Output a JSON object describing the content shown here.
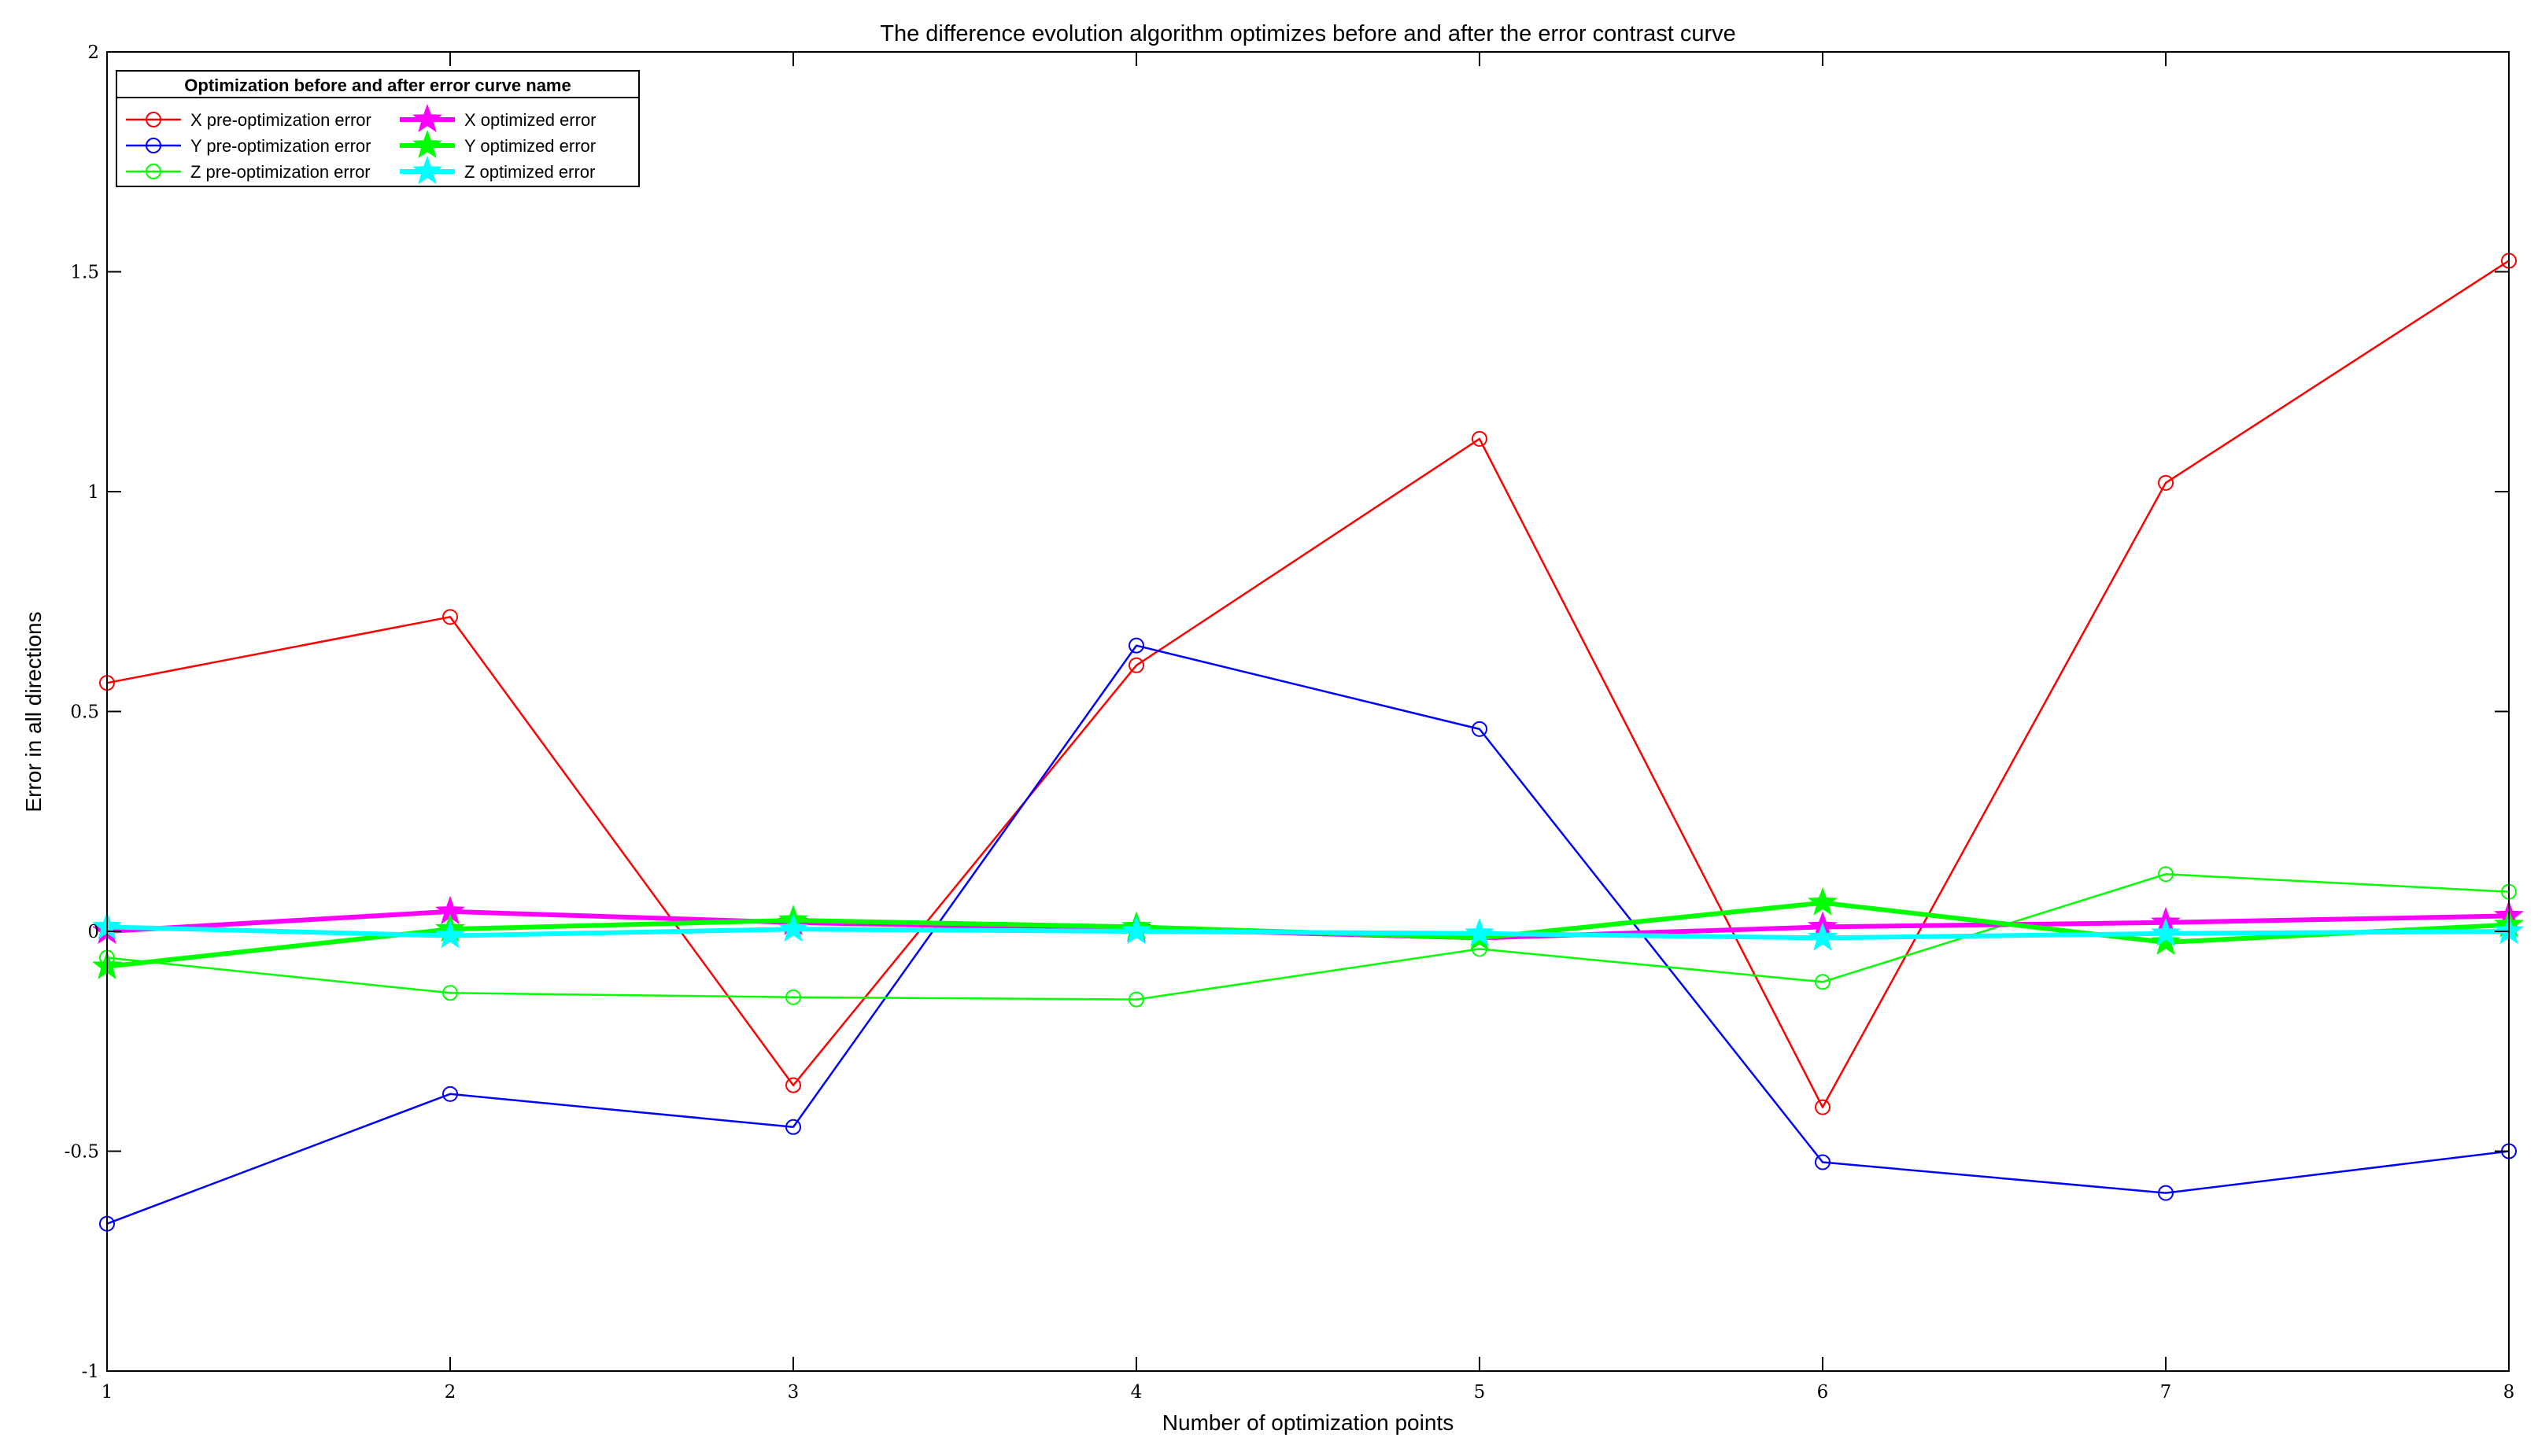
{
  "chart_data": {
    "type": "line",
    "title": "The difference evolution algorithm optimizes before and after the error contrast curve",
    "xlabel": "Number of optimization points",
    "ylabel": "Error in all directions",
    "xlim": [
      1,
      8
    ],
    "ylim": [
      -1,
      2
    ],
    "x_ticks": [
      1,
      2,
      3,
      4,
      5,
      6,
      7,
      8
    ],
    "y_ticks": [
      -1,
      -0.5,
      0,
      0.5,
      1,
      1.5,
      2
    ],
    "grid": false,
    "legend": {
      "title": "Optimization before and after error curve name",
      "placement": "top-left",
      "columns": 2
    },
    "x": [
      1,
      2,
      3,
      4,
      5,
      6,
      7,
      8
    ],
    "series": [
      {
        "name": "X pre-optimization error",
        "color": "#ff0000",
        "marker": "circle",
        "line_width": "thin",
        "values": [
          0.565,
          0.715,
          -0.35,
          0.605,
          1.12,
          -0.4,
          1.02,
          1.525
        ]
      },
      {
        "name": "Y pre-optimization error",
        "color": "#0000ff",
        "marker": "circle",
        "line_width": "thin",
        "values": [
          -0.665,
          -0.37,
          -0.445,
          0.65,
          0.46,
          -0.525,
          -0.595,
          -0.5
        ]
      },
      {
        "name": "Z pre-optimization error",
        "color": "#00ff00",
        "marker": "circle",
        "line_width": "thin",
        "values": [
          -0.06,
          -0.14,
          -0.15,
          -0.155,
          -0.04,
          -0.115,
          0.13,
          0.09
        ]
      },
      {
        "name": "X optimized error",
        "color": "#ff00ff",
        "marker": "star",
        "line_width": "thick",
        "values": [
          0.0,
          0.045,
          0.02,
          0.005,
          -0.015,
          0.01,
          0.02,
          0.035
        ]
      },
      {
        "name": "Y optimized error",
        "color": "#00ff00",
        "marker": "star",
        "line_width": "thick",
        "values": [
          -0.08,
          0.005,
          0.025,
          0.01,
          -0.015,
          0.065,
          -0.025,
          0.015
        ]
      },
      {
        "name": "Z optimized error",
        "color": "#00ffff",
        "marker": "star",
        "line_width": "thick",
        "values": [
          0.01,
          -0.01,
          0.005,
          0.0,
          -0.005,
          -0.015,
          -0.005,
          0.0
        ]
      }
    ]
  }
}
